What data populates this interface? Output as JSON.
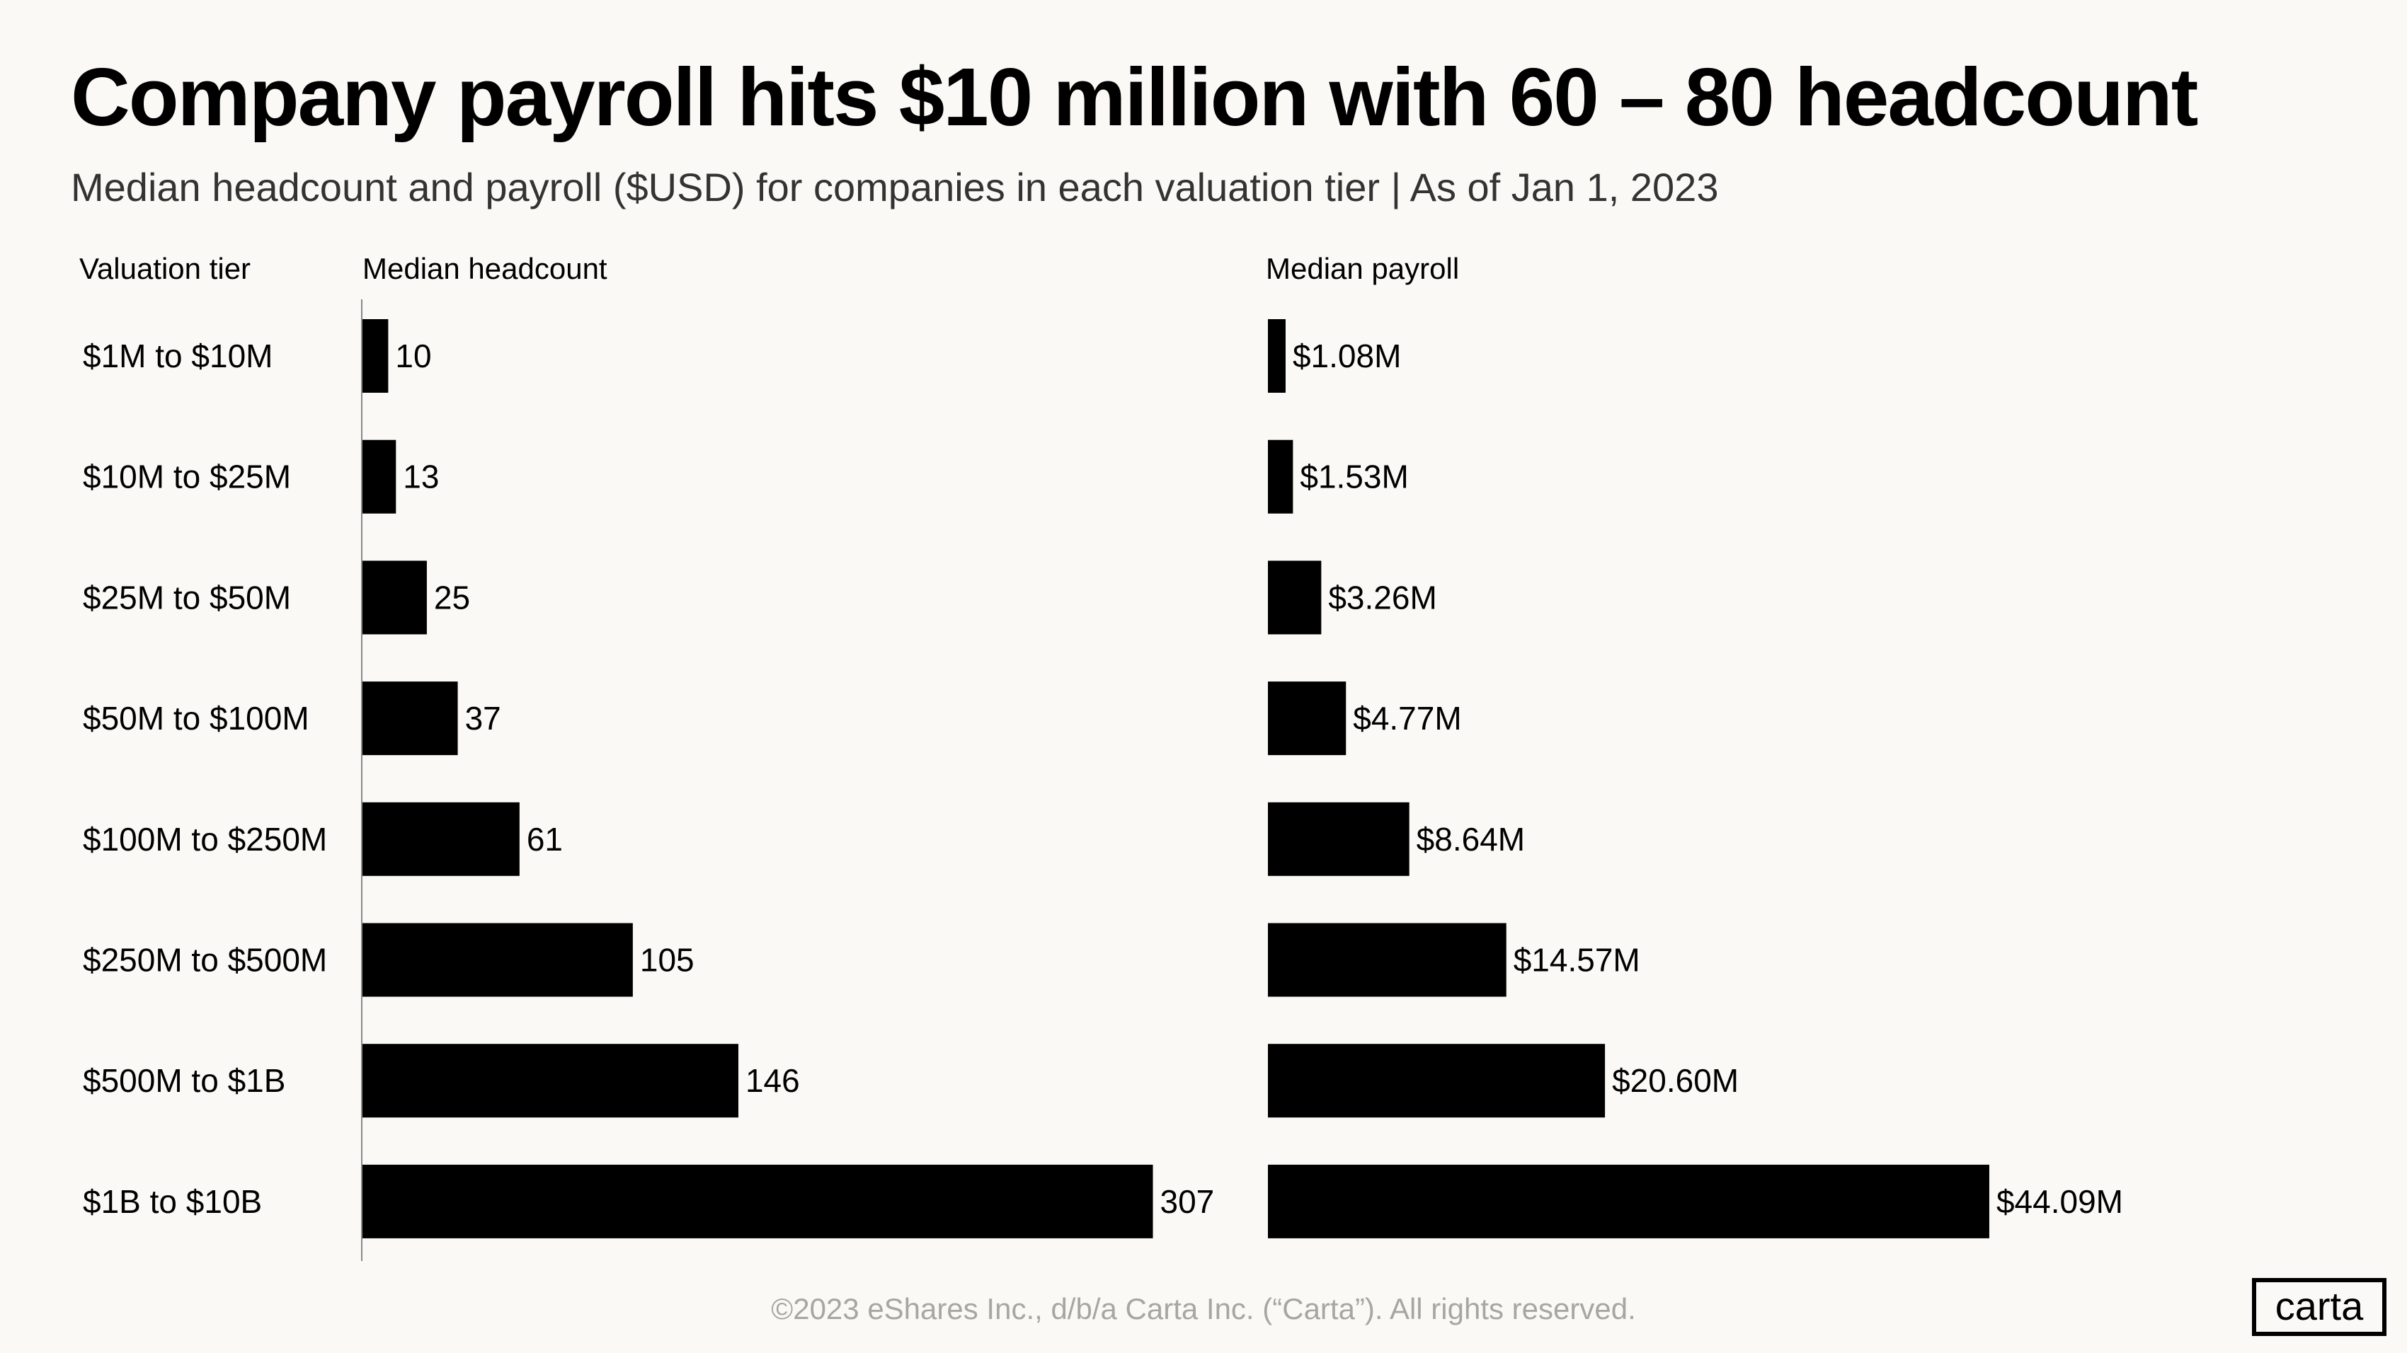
{
  "title": "Company payroll hits $10 million with 60 – 80 headcount",
  "subtitle": "Median headcount and payroll ($USD) for companies in each valuation tier  |  As of Jan 1, 2023",
  "footer": "©2023 eShares Inc., d/b/a Carta Inc. (“Carta”). All rights reserved.",
  "logo": "carta",
  "colors": {
    "background": "#fbf9f5",
    "bars": "#000000",
    "footer_text": "#a8a6a2"
  },
  "chart_data": {
    "type": "bar",
    "orientation": "horizontal",
    "category_header": "Valuation tier",
    "categories": [
      "$1M to $10M",
      "$10M to $25M",
      "$25M to $50M",
      "$50M to $100M",
      "$100M to $250M",
      "$250M to $500M",
      "$500M to $1B",
      "$1B to $10B"
    ],
    "series": [
      {
        "name": "Median headcount",
        "values": [
          10,
          13,
          25,
          37,
          61,
          105,
          146,
          307
        ],
        "labels": [
          "10",
          "13",
          "25",
          "37",
          "61",
          "105",
          "146",
          "307"
        ]
      },
      {
        "name": "Median payroll",
        "values": [
          1.08,
          1.53,
          3.26,
          4.77,
          8.64,
          14.57,
          20.6,
          44.09
        ],
        "unit": "$M",
        "labels": [
          "$1.08M",
          "$1.53M",
          "$3.26M",
          "$4.77M",
          "$8.64M",
          "$14.57M",
          "$20.60M",
          "$44.09M"
        ]
      }
    ],
    "grid": false,
    "axis_ticks": false
  }
}
